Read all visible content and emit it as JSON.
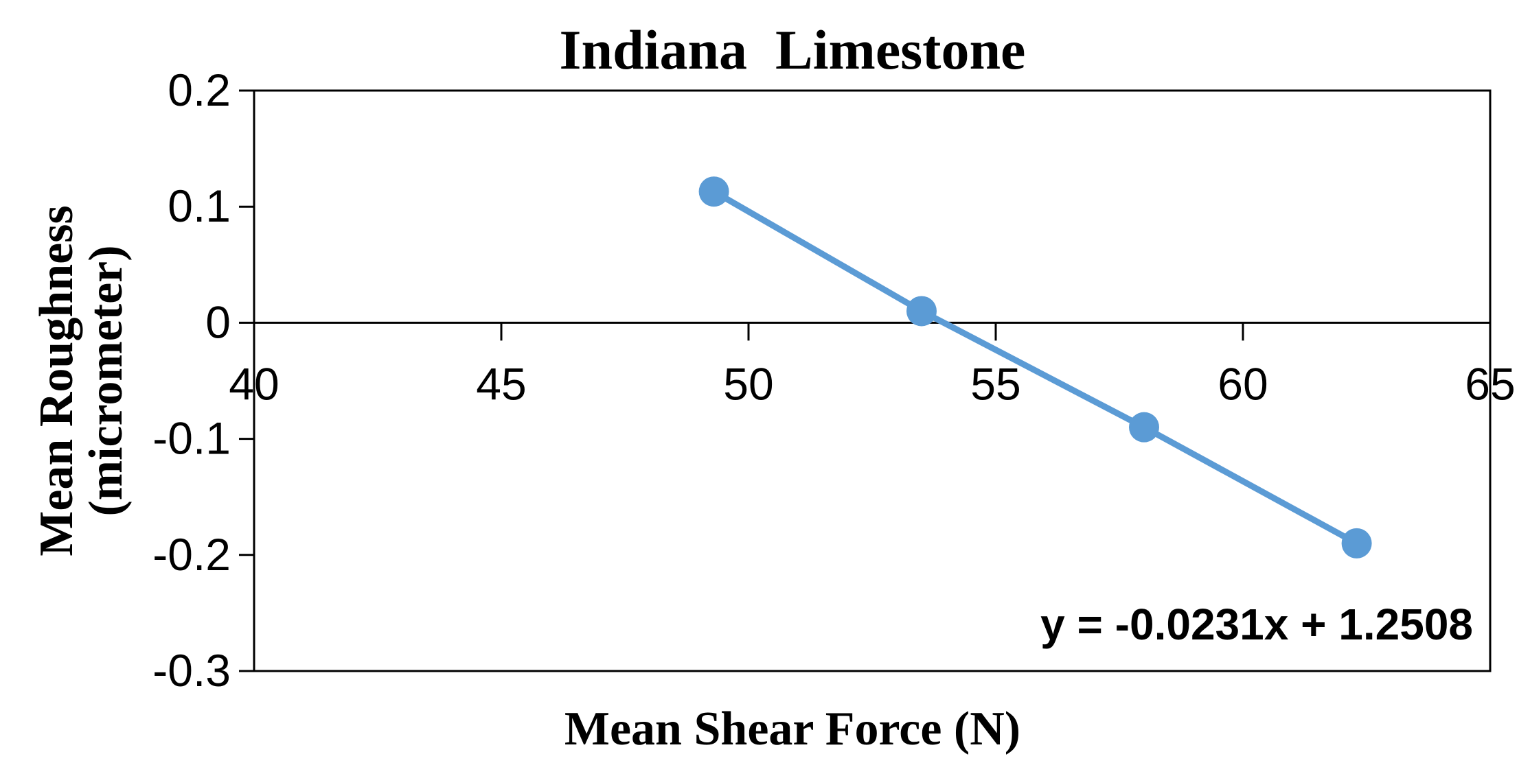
{
  "chart_data": {
    "type": "scatter",
    "title": "Indiana  Limestone",
    "xlabel": "Mean Shear Force (N)",
    "ylabel_lines": [
      "Mean Roughness",
      "(micrometer)"
    ],
    "xlim": [
      40,
      65
    ],
    "ylim": [
      -0.3,
      0.2
    ],
    "x_ticks": [
      40,
      45,
      50,
      55,
      60,
      65
    ],
    "x_tick_labels": [
      "40",
      "45",
      "50",
      "55",
      "60",
      "65"
    ],
    "y_ticks": [
      0.2,
      0.1,
      0,
      -0.1,
      -0.2,
      -0.3
    ],
    "y_tick_labels": [
      "0.2",
      "0.1",
      "0",
      "-0.1",
      "-0.2",
      "-0.3"
    ],
    "grid": false,
    "series": [
      {
        "x": [
          49.3,
          53.5,
          58.0,
          62.3
        ],
        "y": [
          0.113,
          0.01,
          -0.09,
          -0.19
        ],
        "color": "#5B9BD5",
        "marker": "circle",
        "connected": true
      }
    ],
    "annotation": "y = -0.0231x + 1.2508",
    "annotation_position": "bottom-right"
  }
}
